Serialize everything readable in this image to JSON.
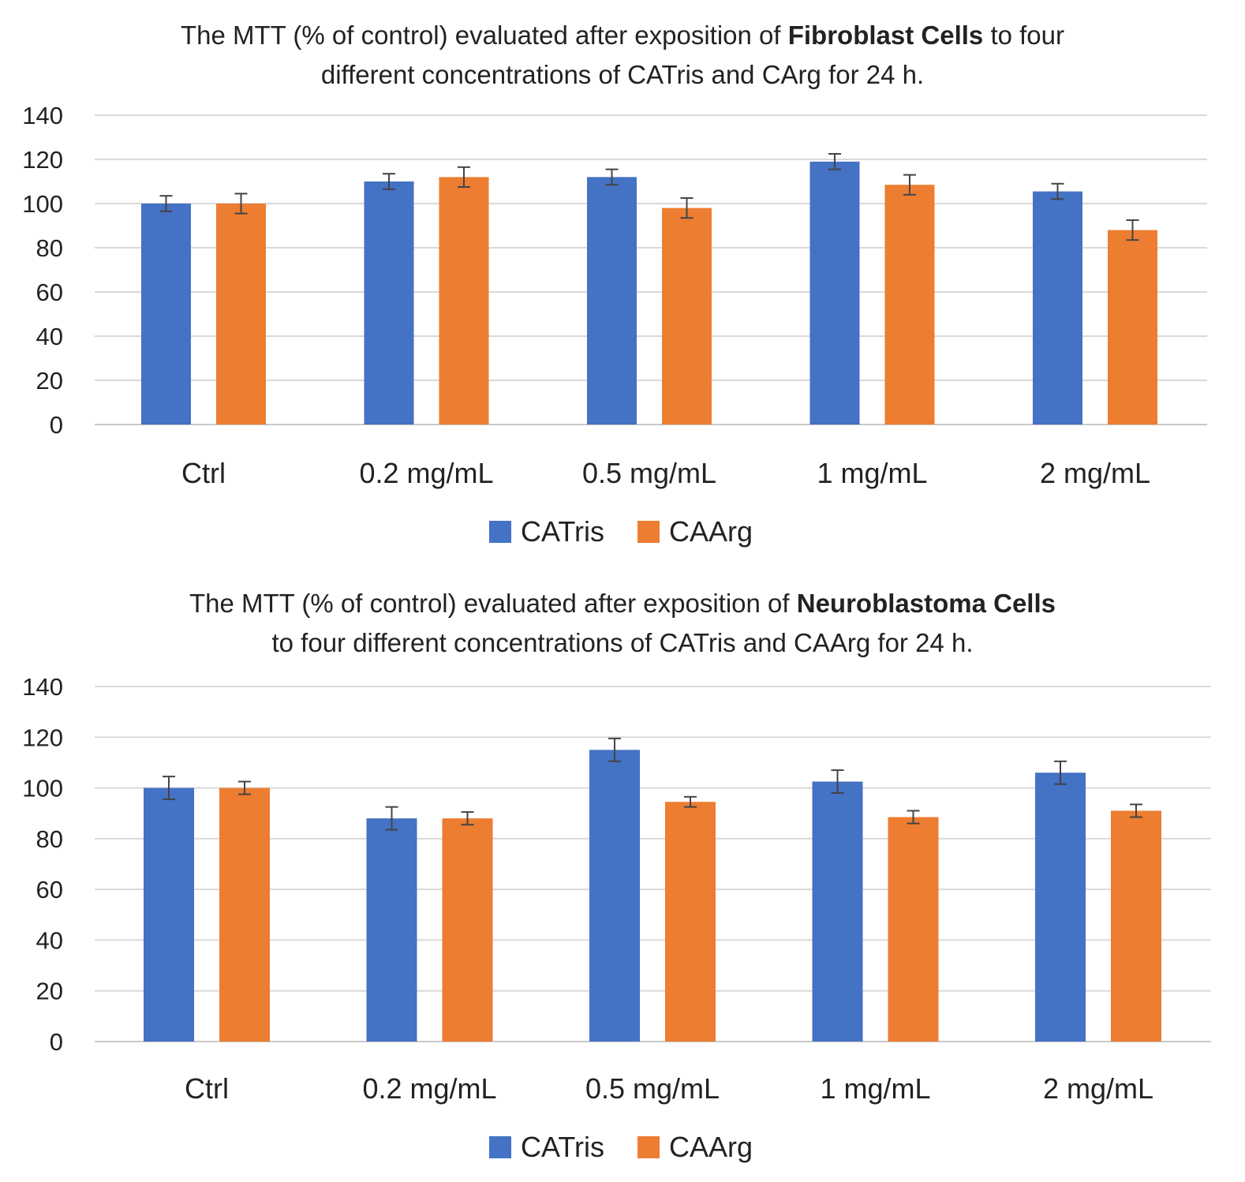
{
  "chart_data": [
    {
      "type": "bar",
      "title": {
        "line1_prefix": "The MTT (% of control) evaluated after exposition of ",
        "line1_bold": "Fibroblast Cells",
        "line1_suffix": " to four",
        "line2": "different concentrations of CATris and CArg for 24 h."
      },
      "categories": [
        "Ctrl",
        "0.2 mg/mL",
        "0.5 mg/mL",
        "1 mg/mL",
        "2 mg/mL"
      ],
      "series": [
        {
          "name": "CATris",
          "color": "#4472C4",
          "values": [
            100,
            110,
            112,
            119,
            105.5
          ],
          "errors": [
            3.5,
            3.5,
            3.5,
            3.5,
            3.5
          ]
        },
        {
          "name": "CAArg",
          "color": "#ED7D31",
          "values": [
            100,
            112,
            98,
            108.5,
            88
          ],
          "errors": [
            4.5,
            4.5,
            4.5,
            4.5,
            4.5
          ]
        }
      ],
      "yticks": [
        "0",
        "20",
        "40",
        "60",
        "80",
        "100",
        "120",
        "140"
      ],
      "ylim": [
        0,
        140
      ],
      "xlabel": "",
      "ylabel": "",
      "grid": true,
      "legend": "bottom-center"
    },
    {
      "type": "bar",
      "title": {
        "line1_prefix": "The MTT (% of control) evaluated after exposition of ",
        "line1_bold": "Neuroblastoma Cells",
        "line1_suffix": "",
        "line2": "to four different concentrations of CATris and CAArg for 24 h."
      },
      "categories": [
        "Ctrl",
        "0.2 mg/mL",
        "0.5 mg/mL",
        "1 mg/mL",
        "2 mg/mL"
      ],
      "series": [
        {
          "name": "CATris",
          "color": "#4472C4",
          "values": [
            100,
            88,
            115,
            102.5,
            106
          ],
          "errors": [
            4.5,
            4.5,
            4.5,
            4.5,
            4.5
          ]
        },
        {
          "name": "CAArg",
          "color": "#ED7D31",
          "values": [
            100,
            88,
            94.5,
            88.5,
            91
          ],
          "errors": [
            2.5,
            2.5,
            2,
            2.5,
            2.5
          ]
        }
      ],
      "yticks": [
        "0",
        "20",
        "40",
        "60",
        "80",
        "100",
        "120",
        "140"
      ],
      "ylim": [
        0,
        140
      ],
      "xlabel": "",
      "ylabel": "",
      "grid": true,
      "legend": "bottom-center"
    }
  ]
}
